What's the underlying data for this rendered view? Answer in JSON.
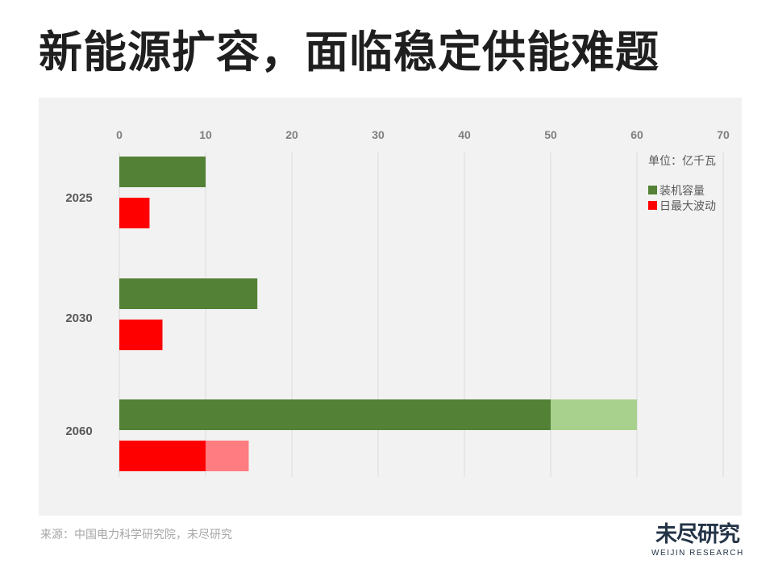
{
  "title": "新能源扩容，面临稳定供能难题",
  "unit": "单位：亿千瓦",
  "source": "来源：中国电力科学研究院，未尽研究",
  "logo": {
    "main": "未尽研究",
    "sub": "WEIJIN RESEARCH"
  },
  "chart_data": {
    "type": "bar",
    "orientation": "horizontal",
    "categories": [
      "2025",
      "2030",
      "2060"
    ],
    "series": [
      {
        "name": "装机容量",
        "color": "#538135",
        "extension_color": "#a9d18e",
        "values": [
          10,
          16,
          50
        ],
        "extension_to": [
          null,
          null,
          60
        ]
      },
      {
        "name": "日最大波动",
        "color": "#ff0000",
        "extension_color": "#ff7c80",
        "values": [
          3.5,
          5,
          10
        ],
        "extension_to": [
          null,
          null,
          15
        ]
      }
    ],
    "xlim": [
      0,
      70
    ],
    "xticks": [
      "0",
      "10",
      "20",
      "30",
      "40",
      "50",
      "60",
      "70"
    ],
    "x_axis_position": "top",
    "grid": "vertical",
    "legend_position": "top-right"
  }
}
